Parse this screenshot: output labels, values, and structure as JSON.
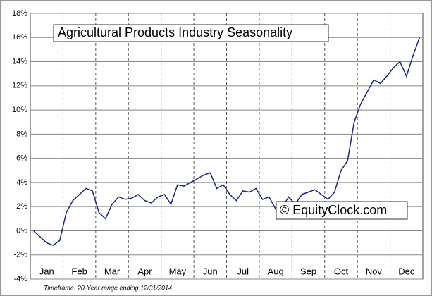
{
  "chart_data": {
    "type": "line",
    "title": "Agricultural Products Industry Seasonality",
    "annotation": "© EquityClock.com",
    "footnote": "Timeframe: 20-Year range ending 12/31/2014",
    "categories": [
      null,
      null,
      "Jan",
      null,
      null,
      null,
      null,
      "Feb",
      null,
      null,
      null,
      null,
      "Mar",
      null,
      null,
      null,
      null,
      "Apr",
      null,
      null,
      null,
      null,
      "May",
      null,
      null,
      null,
      null,
      "Jun",
      null,
      null,
      null,
      null,
      "Jul",
      null,
      null,
      null,
      null,
      "Aug",
      null,
      null,
      null,
      null,
      "Sep",
      null,
      null,
      null,
      null,
      "Oct",
      null,
      null,
      null,
      null,
      "Nov",
      null,
      null,
      null,
      null,
      "Dec",
      null,
      null
    ],
    "series": [
      {
        "name": "Seasonality",
        "color": "#1a2380",
        "values": [
          0,
          -0.5,
          -1,
          -1.2,
          -0.8,
          1.5,
          2.5,
          3,
          3.5,
          3.3,
          1.5,
          1.0,
          2.2,
          2.8,
          2.6,
          2.7,
          3.0,
          2.5,
          2.3,
          2.8,
          3.0,
          2.2,
          3.8,
          3.7,
          4.0,
          4.3,
          4.6,
          4.8,
          3.5,
          3.8,
          3.0,
          2.5,
          3.3,
          3.2,
          3.5,
          2.6,
          2.8,
          1.8,
          2.0,
          2.8,
          2.2,
          3.0,
          3.2,
          3.4,
          3.0,
          2.6,
          3.2,
          5.0,
          5.8,
          9.0,
          10.5,
          11.5,
          12.5,
          12.2,
          12.8,
          13.5,
          14.0,
          12.8,
          14.5,
          16.0
        ]
      }
    ],
    "ylim": [
      -4,
      18
    ],
    "yticks": [
      {
        "value": -4,
        "label": "-4%"
      },
      {
        "value": -2,
        "label": "-2%"
      },
      {
        "value": 0,
        "label": "0%"
      },
      {
        "value": 2,
        "label": "2%"
      },
      {
        "value": 4,
        "label": "4%"
      },
      {
        "value": 6,
        "label": "6%"
      },
      {
        "value": 8,
        "label": "8%"
      },
      {
        "value": 10,
        "label": "10%"
      },
      {
        "value": 12,
        "label": "12%"
      },
      {
        "value": 14,
        "label": "14%"
      },
      {
        "value": 16,
        "label": "16%"
      },
      {
        "value": 18,
        "label": "18%"
      }
    ],
    "grid": true
  }
}
